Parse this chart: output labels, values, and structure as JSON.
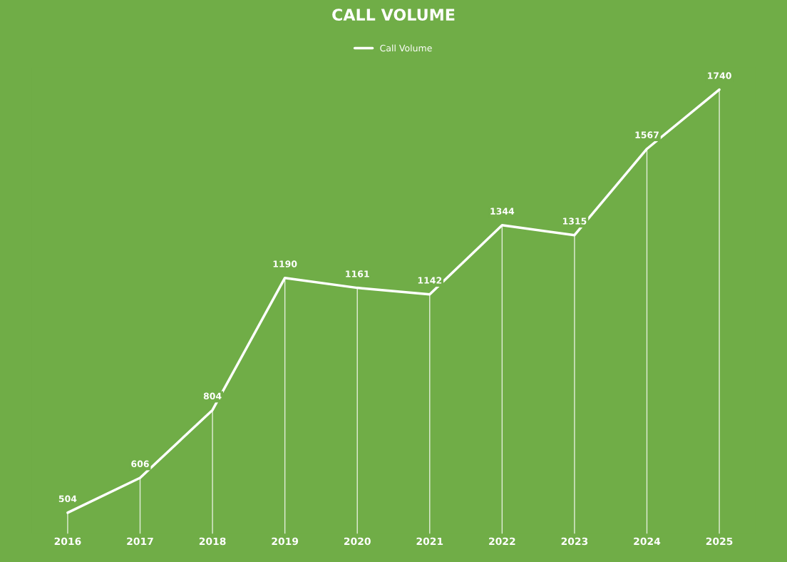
{
  "chart_data": {
    "type": "line",
    "title": "CALL VOLUME",
    "categories": [
      "2016",
      "2017",
      "2018",
      "2019",
      "2020",
      "2021",
      "2022",
      "2023",
      "2024",
      "2025"
    ],
    "series": [
      {
        "name": "Call Volume",
        "color": "#ffffff",
        "values": [
          504,
          606,
          804,
          1190,
          1161,
          1142,
          1344,
          1315,
          1567,
          1740
        ]
      }
    ],
    "tick_labels": "x",
    "data_labels": true,
    "grid": "x",
    "legend": "top",
    "line_style": "solid"
  }
}
